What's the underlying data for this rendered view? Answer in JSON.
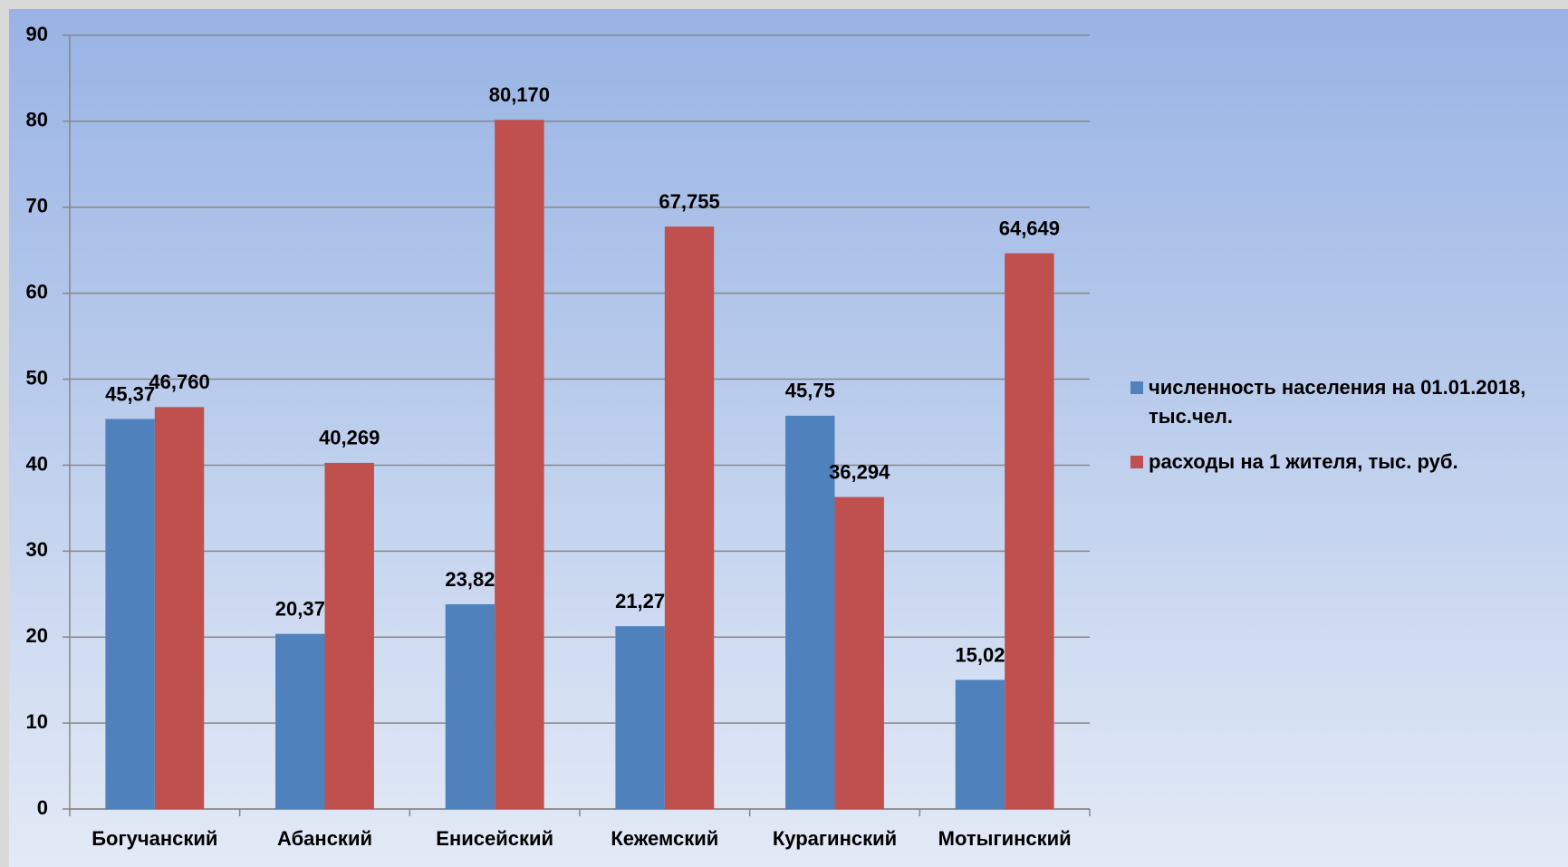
{
  "chart_data": {
    "type": "bar",
    "categories": [
      "Богучанский",
      "Абанский",
      "Енисейский",
      "Кежемский",
      "Курагинский",
      "Мотыгинский"
    ],
    "series": [
      {
        "name": "численность населения на 01.01.2018, тыс.чел.",
        "color": "#4f81bd",
        "values": [
          45.37,
          20.37,
          23.82,
          21.27,
          45.75,
          15.02
        ],
        "value_labels": [
          "45,37",
          "20,37",
          "23,82",
          "21,27",
          "45,75",
          "15,02"
        ]
      },
      {
        "name": "расходы на 1 жителя, тыс. руб.",
        "color": "#c0504d",
        "values": [
          46.76,
          40.269,
          80.17,
          67.755,
          36.294,
          64.649
        ],
        "value_labels": [
          "46,760",
          "40,269",
          "80,170",
          "67,755",
          "36,294",
          "64,649"
        ]
      }
    ],
    "ylim": [
      0,
      90
    ],
    "yticks": [
      0,
      10,
      20,
      30,
      40,
      50,
      60,
      70,
      80,
      90
    ],
    "grid": true,
    "legend": "right"
  }
}
